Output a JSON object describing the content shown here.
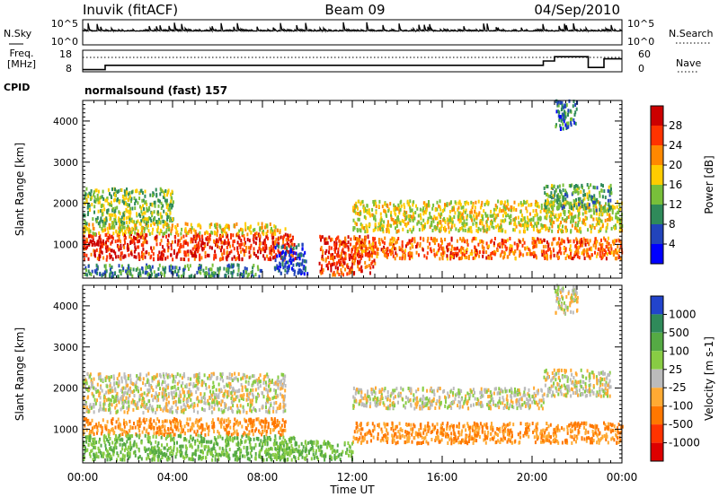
{
  "header": {
    "station": "Inuvik (fitACF)",
    "beam": "Beam 09",
    "date": "04/Sep/2010"
  },
  "panels": {
    "nsky": {
      "label": "N.Sky",
      "ticks": [
        "10^5",
        "10^0"
      ],
      "right_label": "N.Search",
      "right_ticks": [
        "10^5",
        "10^0"
      ]
    },
    "freq": {
      "label_line1": "Freq.",
      "label_line2": "[MHz]",
      "ticks": [
        "18",
        "8"
      ],
      "right_label": "Nave",
      "right_ticks": [
        "60",
        "0"
      ]
    },
    "cpid": {
      "label": "CPID",
      "program": "normalsound (fast) 157"
    }
  },
  "power_scale": {
    "title": "Power [dB]",
    "ticks": [
      "28",
      "24",
      "20",
      "16",
      "12",
      "8",
      "4"
    ],
    "colors": [
      "#0000ff",
      "#2244bb",
      "#2f8a5a",
      "#78bf3a",
      "#ffcc00",
      "#ff8800",
      "#ff3300",
      "#cc0000"
    ]
  },
  "velocity_scale": {
    "title": "Velocity [m s-1]",
    "ticks": [
      "1000",
      "500",
      "100",
      "25",
      "-25",
      "-100",
      "-500",
      "-1000"
    ],
    "colors": [
      "#2244cc",
      "#2f8a5a",
      "#55aa44",
      "#88cc44",
      "#bbbbbb",
      "#ffaa33",
      "#ff7700",
      "#ff3300",
      "#dd0000"
    ]
  },
  "chart_data": {
    "type": "heatmap",
    "x_axis": {
      "label": "Time UT",
      "ticks": [
        "00:00",
        "04:00",
        "08:00",
        "12:00",
        "16:00",
        "20:00",
        "00:00"
      ],
      "range_hours": [
        0,
        24
      ]
    },
    "y_axis": {
      "label": "Slant Range [km]",
      "ticks": [
        4000,
        3000,
        2000,
        1000
      ],
      "range_km": [
        180,
        4500
      ]
    },
    "panels": [
      {
        "name": "power",
        "unit": "dB",
        "scatter_bands": [
          {
            "t0": 0.0,
            "t1": 9.5,
            "r0": 620,
            "r1": 1250,
            "value": 27
          },
          {
            "t0": 0.0,
            "t1": 9.0,
            "r0": 1250,
            "r1": 1500,
            "value": 18
          },
          {
            "t0": 0.0,
            "t1": 4.0,
            "r0": 1500,
            "r1": 2350,
            "value": 14
          },
          {
            "t0": 8.5,
            "t1": 10.0,
            "r0": 250,
            "r1": 1000,
            "value": 6
          },
          {
            "t0": 10.5,
            "t1": 13.0,
            "r0": 250,
            "r1": 1200,
            "value": 26
          },
          {
            "t0": 12.0,
            "t1": 24.0,
            "r0": 650,
            "r1": 1150,
            "value": 24
          },
          {
            "t0": 12.0,
            "t1": 24.0,
            "r0": 1300,
            "r1": 2050,
            "value": 17
          },
          {
            "t0": 20.5,
            "t1": 23.5,
            "r0": 1800,
            "r1": 2450,
            "value": 12
          },
          {
            "t0": 0.0,
            "t1": 8.0,
            "r0": 200,
            "r1": 500,
            "value": 10
          },
          {
            "t0": 21.0,
            "t1": 22.0,
            "r0": 3800,
            "r1": 4500,
            "value": 8
          }
        ]
      },
      {
        "name": "velocity",
        "unit": "m s-1",
        "scatter_bands": [
          {
            "t0": 0.0,
            "t1": 9.0,
            "r0": 850,
            "r1": 1250,
            "value": -100
          },
          {
            "t0": 0.0,
            "t1": 9.5,
            "r0": 250,
            "r1": 850,
            "value": 100
          },
          {
            "t0": 0.0,
            "t1": 9.0,
            "r0": 1400,
            "r1": 2350,
            "value": 0
          },
          {
            "t0": 12.0,
            "t1": 24.0,
            "r0": 650,
            "r1": 1150,
            "value": -100
          },
          {
            "t0": 12.0,
            "t1": 20.5,
            "r0": 1500,
            "r1": 2000,
            "value": 0
          },
          {
            "t0": 20.5,
            "t1": 23.5,
            "r0": 1800,
            "r1": 2450,
            "value": 0
          },
          {
            "t0": 8.5,
            "t1": 12.0,
            "r0": 250,
            "r1": 700,
            "value": 100
          },
          {
            "t0": 21.0,
            "t1": 22.0,
            "r0": 3800,
            "r1": 4500,
            "value": 0
          }
        ]
      }
    ],
    "nsky_level": 0.55,
    "freq_steps": [
      {
        "t0": 0.0,
        "t1": 1.0,
        "f": 9
      },
      {
        "t0": 1.0,
        "t1": 4.5,
        "f": 11
      },
      {
        "t0": 4.5,
        "t1": 20.5,
        "f": 11
      },
      {
        "t0": 20.5,
        "t1": 21.0,
        "f": 13
      },
      {
        "t0": 21.0,
        "t1": 22.5,
        "f": 15
      },
      {
        "t0": 22.5,
        "t1": 23.2,
        "f": 10
      },
      {
        "t0": 23.2,
        "t1": 24.0,
        "f": 14
      }
    ]
  }
}
